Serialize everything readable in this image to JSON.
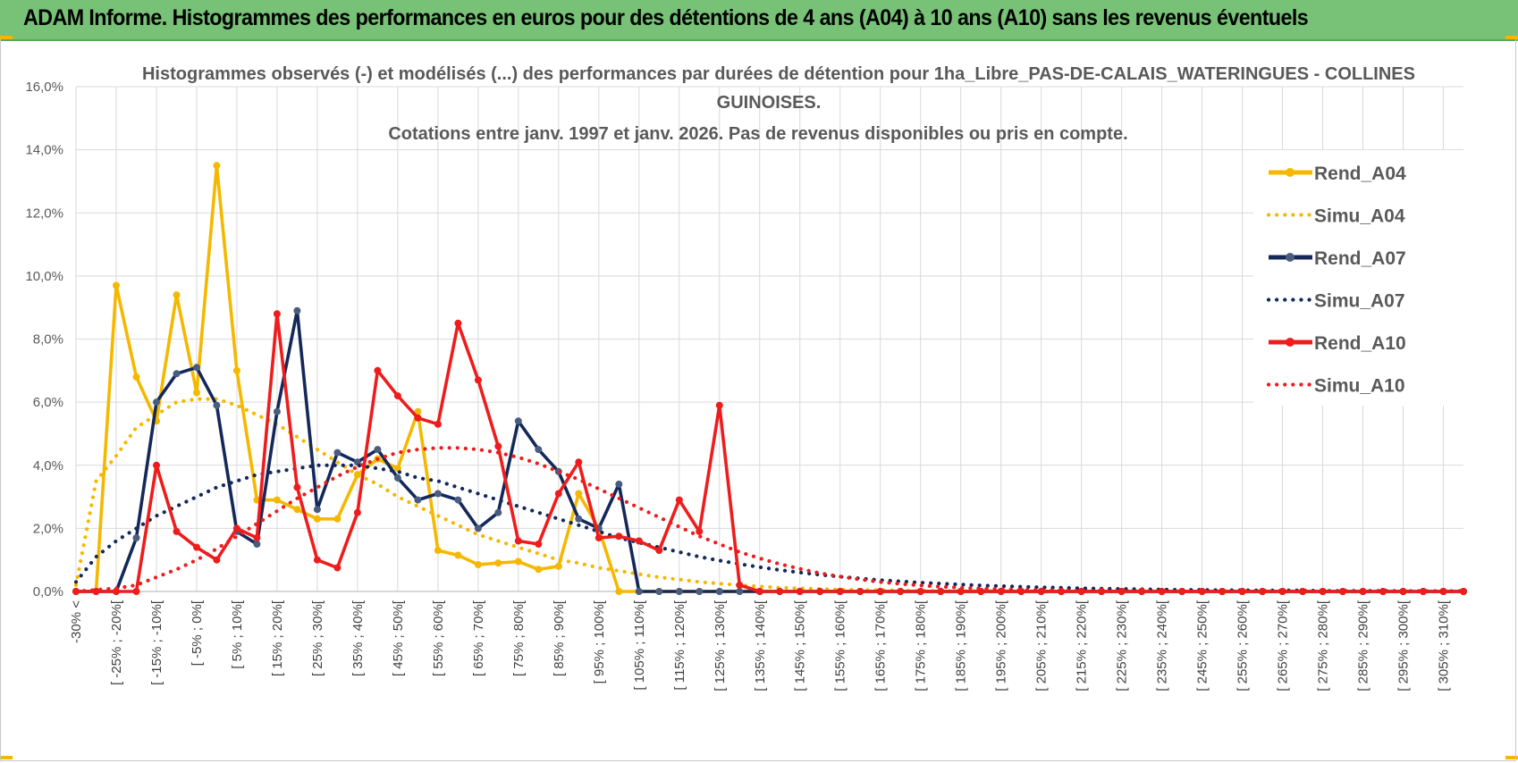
{
  "header": {
    "title": "ADAM Informe. Histogrammes des performances en euros pour des détentions de 4 ans (A04) à 10 ans (A10) sans les revenus éventuels",
    "background": "#77c277"
  },
  "chart_data": {
    "type": "line",
    "title": [
      "Histogrammes observés (-) et modélisés (...)  des performances par durées de détention pour 1ha_Libre_PAS-DE-CALAIS_WATERINGUES - COLLINES",
      "GUINOISES.",
      "Cotations entre janv. 1997 et janv. 2026. Pas de revenus disponibles ou pris en compte."
    ],
    "ylim": [
      0,
      16
    ],
    "yticks": [
      "0,0%",
      "2,0%",
      "4,0%",
      "6,0%",
      "8,0%",
      "10,0%",
      "12,0%",
      "14,0%",
      "16,0%"
    ],
    "grid": true,
    "legend_position": "right",
    "categories": [
      "-30% <",
      "[ -30% ; -25%[",
      "[ -25% ; -20%[",
      "[ -20% ; -15%[",
      "[ -15% ; -10%[",
      "[ -10% ; -5%[",
      "[ -5% ; 0%[",
      "[ 0% ; 5%[",
      "[ 5% ; 10%[",
      "[ 10% ; 15%[",
      "[ 15% ; 20%[",
      "[ 20% ; 25%[",
      "[ 25% ; 30%[",
      "[ 30% ; 35%[",
      "[ 35% ; 40%[",
      "[ 40% ; 45%[",
      "[ 45% ; 50%[",
      "[ 50% ; 55%[",
      "[ 55% ; 60%[",
      "[ 60% ; 65%[",
      "[ 65% ; 70%[",
      "[ 70% ; 75%[",
      "[ 75% ; 80%[",
      "[ 80% ; 85%[",
      "[ 85% ; 90%[",
      "[ 90% ; 95%[",
      "[ 95% ; 100%[",
      "[ 100% ; 105%[",
      "[ 105% ; 110%[",
      "[ 110% ; 115%[",
      "[ 115% ; 120%[",
      "[ 120% ; 125%[",
      "[ 125% ; 130%[",
      "[ 130% ; 135%[",
      "[ 135% ; 140%[",
      "[ 140% ; 145%[",
      "[ 145% ; 150%[",
      "[ 150% ; 155%[",
      "[ 155% ; 160%[",
      "[ 160% ; 165%[",
      "[ 165% ; 170%[",
      "[ 170% ; 175%[",
      "[ 175% ; 180%[",
      "[ 180% ; 185%[",
      "[ 185% ; 190%[",
      "[ 190% ; 195%[",
      "[ 195% ; 200%[",
      "[ 200% ; 205%[",
      "[ 205% ; 210%[",
      "[ 210% ; 215%[",
      "[ 215% ; 220%[",
      "[ 220% ; 225%[",
      "[ 225% ; 230%[",
      "[ 230% ; 235%[",
      "[ 235% ; 240%[",
      "[ 240% ; 245%[",
      "[ 245% ; 250%[",
      "[ 250% ; 255%[",
      "[ 255% ; 260%[",
      "[ 260% ; 265%[",
      "[ 265% ; 270%[",
      "[ 270% ; 275%[",
      "[ 275% ; 280%[",
      "[ 280% ; 285%[",
      "[ 285% ; 290%[",
      "[ 290% ; 295%[",
      "[ 295% ; 300%[",
      "[ 300% ; 305%[",
      "[ 305% ; 310%[",
      "[ 310% ; 315%["
    ],
    "visible_tick_labels": [
      "-30% <",
      "[ -25% ; -20%[",
      "[ -15% ; -10%[",
      "[ -5% ; 0%[",
      "[ 5% ; 10%[",
      "[ 15% ; 20%[",
      "[ 25% ; 30%[",
      "[ 35% ; 40%[",
      "[ 45% ; 50%[",
      "[ 55% ; 60%[",
      "[ 65% ; 70%[",
      "[ 75% ; 80%[",
      "[ 85% ; 90%[",
      "[ 95% ; 100%[",
      "[ 105% ; 110%[",
      "[ 115% ; 120%[",
      "[ 125% ; 130%[",
      "[ 135% ; 140%[",
      "[ 145% ; 150%[",
      "[ 155% ; 160%[",
      "[ 165% ; 170%[",
      "[ 175% ; 180%[",
      "[ 185% ; 190%[",
      "[ 195% ; 200%[",
      "[ 205% ; 210%[",
      "[ 215% ; 220%[",
      "[ 225% ; 230%[",
      "[ 235% ; 240%[",
      "[ 245% ; 250%[",
      "[ 255% ; 260%[",
      "[ 265% ; 270%[",
      "[ 275% ; 280%[",
      "[ 285% ; 290%[",
      "[ 295% ; 300%[",
      "[ 305% ; 310%["
    ],
    "series": [
      {
        "name": "Rend_A04",
        "style": "solid",
        "color": "#f5b800",
        "values": [
          0,
          0,
          9.7,
          6.8,
          5.4,
          9.4,
          6.3,
          13.5,
          7.0,
          2.9,
          2.9,
          2.6,
          2.3,
          2.3,
          3.7,
          4.2,
          3.9,
          5.7,
          1.3,
          1.15,
          0.85,
          0.9,
          0.95,
          0.7,
          0.8,
          3.1,
          2.0,
          0,
          0,
          0,
          0,
          0,
          0,
          0,
          0,
          0,
          0,
          0,
          0,
          0,
          0,
          0,
          0,
          0,
          0,
          0,
          0,
          0,
          0,
          0,
          0,
          0,
          0,
          0,
          0,
          0,
          0,
          0,
          0,
          0,
          0,
          0,
          0,
          0,
          0,
          0,
          0,
          0,
          0,
          0
        ]
      },
      {
        "name": "Simu_A04",
        "style": "dotted",
        "color": "#f5b800",
        "values": [
          0.2,
          3.5,
          4.3,
          5.2,
          5.6,
          6.0,
          6.1,
          6.1,
          5.9,
          5.6,
          5.3,
          4.9,
          4.5,
          4.1,
          3.7,
          3.4,
          3.0,
          2.7,
          2.4,
          2.1,
          1.8,
          1.6,
          1.4,
          1.2,
          1.0,
          0.9,
          0.75,
          0.65,
          0.55,
          0.45,
          0.38,
          0.3,
          0.25,
          0.2,
          0.16,
          0.12,
          0.1,
          0.08,
          0.06,
          0.05,
          0.04,
          0.03,
          0.02,
          0.02,
          0.01,
          0.01,
          0.01,
          0,
          0,
          0,
          0,
          0,
          0,
          0,
          0,
          0,
          0,
          0,
          0,
          0,
          0,
          0,
          0,
          0,
          0,
          0,
          0,
          0,
          0,
          0
        ]
      },
      {
        "name": "Rend_A07",
        "style": "solid",
        "color": "#14285a",
        "values": [
          0,
          0,
          0,
          1.7,
          6.0,
          6.9,
          7.1,
          5.9,
          1.9,
          1.5,
          5.7,
          8.9,
          2.6,
          4.4,
          4.1,
          4.5,
          3.6,
          2.9,
          3.1,
          2.9,
          2.0,
          2.5,
          5.4,
          4.5,
          3.8,
          2.3,
          2.0,
          3.4,
          0,
          0,
          0,
          0,
          0,
          0,
          0,
          0,
          0,
          0,
          0,
          0,
          0,
          0,
          0,
          0,
          0,
          0,
          0,
          0,
          0,
          0,
          0,
          0,
          0,
          0,
          0,
          0,
          0,
          0,
          0,
          0,
          0,
          0,
          0,
          0,
          0,
          0,
          0,
          0,
          0,
          0
        ]
      },
      {
        "name": "Simu_A07",
        "style": "dotted",
        "color": "#14285a",
        "values": [
          0.3,
          1.1,
          1.6,
          2.0,
          2.4,
          2.7,
          3.0,
          3.3,
          3.5,
          3.7,
          3.8,
          3.9,
          4.0,
          4.0,
          4.0,
          3.9,
          3.8,
          3.6,
          3.5,
          3.3,
          3.1,
          2.9,
          2.7,
          2.5,
          2.3,
          2.1,
          1.9,
          1.7,
          1.55,
          1.4,
          1.25,
          1.1,
          0.98,
          0.87,
          0.77,
          0.68,
          0.6,
          0.53,
          0.47,
          0.41,
          0.36,
          0.32,
          0.28,
          0.25,
          0.22,
          0.19,
          0.17,
          0.15,
          0.13,
          0.12,
          0.1,
          0.09,
          0.08,
          0.07,
          0.06,
          0.05,
          0.05,
          0.04,
          0.04,
          0.03,
          0.03,
          0.03,
          0.02,
          0.02,
          0.02,
          0.02,
          0.01,
          0.01,
          0.01,
          0.01
        ]
      },
      {
        "name": "Rend_A10",
        "style": "solid",
        "color": "#ee1c1c",
        "values": [
          0,
          0,
          0,
          0,
          4.0,
          1.9,
          1.4,
          1.0,
          2.0,
          1.7,
          8.8,
          3.3,
          1.0,
          0.75,
          2.5,
          7.0,
          6.2,
          5.5,
          5.3,
          8.5,
          6.7,
          4.6,
          1.6,
          1.5,
          3.1,
          4.1,
          1.7,
          1.75,
          1.6,
          1.3,
          2.9,
          1.9,
          5.9,
          0.2,
          0,
          0,
          0,
          0,
          0,
          0,
          0,
          0,
          0,
          0,
          0,
          0,
          0,
          0,
          0,
          0,
          0,
          0,
          0,
          0,
          0,
          0,
          0,
          0,
          0,
          0,
          0,
          0,
          0,
          0,
          0,
          0,
          0,
          0,
          0,
          0
        ]
      },
      {
        "name": "Simu_A10",
        "style": "dotted",
        "color": "#ee1c1c",
        "values": [
          0,
          0.05,
          0.1,
          0.2,
          0.45,
          0.7,
          1.0,
          1.35,
          1.75,
          2.15,
          2.55,
          2.95,
          3.3,
          3.65,
          3.95,
          4.2,
          4.4,
          4.5,
          4.55,
          4.55,
          4.5,
          4.4,
          4.25,
          4.05,
          3.8,
          3.55,
          3.25,
          2.95,
          2.65,
          2.35,
          2.05,
          1.75,
          1.5,
          1.25,
          1.05,
          0.87,
          0.72,
          0.58,
          0.47,
          0.38,
          0.3,
          0.24,
          0.19,
          0.15,
          0.12,
          0.09,
          0.07,
          0.05,
          0.04,
          0.03,
          0.02,
          0.02,
          0.01,
          0.01,
          0.01,
          0,
          0,
          0,
          0,
          0,
          0,
          0,
          0,
          0,
          0,
          0,
          0,
          0,
          0,
          0
        ]
      }
    ]
  }
}
